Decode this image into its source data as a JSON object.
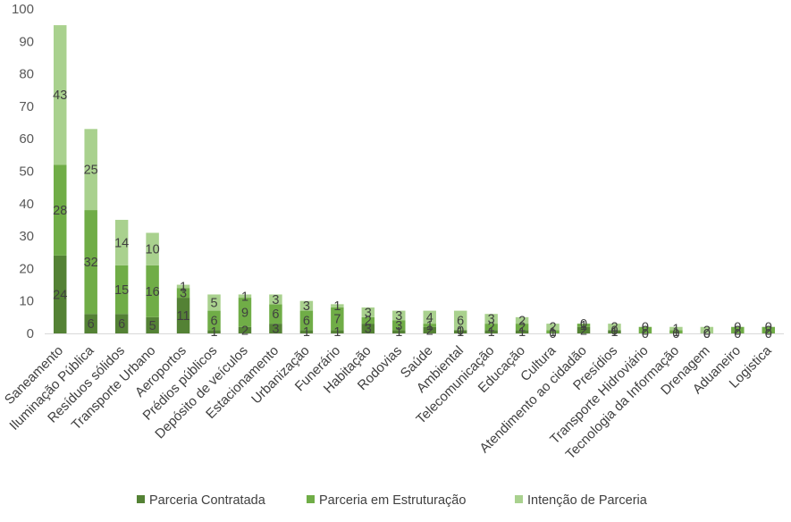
{
  "chart_data": {
    "type": "bar",
    "stacked": true,
    "categories": [
      "Saneamento",
      "Iluminação Pública",
      "Resíduos sólidos",
      "Transporte Urbano",
      "Aeroportos",
      "Prédios públicos",
      "Depósito de veículos",
      "Estacionamento",
      "Urbanização",
      "Funerário",
      "Habitação",
      "Rodovias",
      "Saúde",
      "Ambiental",
      "Telecomunicação",
      "Educação",
      "Cultura",
      "Atendimento ao cidadão",
      "Presídios",
      "Transporte Hidroviário",
      "Tecnologia da Informação",
      "Drenagem",
      "Aduaneiro",
      "Logistica"
    ],
    "series": [
      {
        "name": "Parceria Contratada",
        "color": "#548235",
        "values": [
          24,
          6,
          6,
          5,
          11,
          1,
          2,
          3,
          1,
          1,
          3,
          1,
          2,
          1,
          1,
          1,
          0,
          2,
          1,
          0,
          0,
          0,
          0,
          0
        ]
      },
      {
        "name": "Parceria em Estruturação",
        "color": "#70ad47",
        "values": [
          28,
          32,
          15,
          16,
          3,
          6,
          9,
          6,
          6,
          7,
          2,
          3,
          1,
          0,
          2,
          2,
          1,
          1,
          0,
          2,
          1,
          0,
          2,
          2
        ]
      },
      {
        "name": "Intenção de Parceria",
        "color": "#a9d18e",
        "values": [
          43,
          25,
          14,
          10,
          1,
          5,
          1,
          3,
          3,
          1,
          3,
          3,
          4,
          6,
          3,
          2,
          2,
          0,
          2,
          0,
          1,
          2,
          0,
          0
        ]
      }
    ],
    "ylim": [
      0,
      100
    ],
    "yticks": [
      "0",
      "10",
      "20",
      "30",
      "40",
      "50",
      "60",
      "70",
      "80",
      "90",
      "100"
    ],
    "grid": false,
    "legend_position": "bottom",
    "title": "",
    "xlabel": "",
    "ylabel": ""
  }
}
